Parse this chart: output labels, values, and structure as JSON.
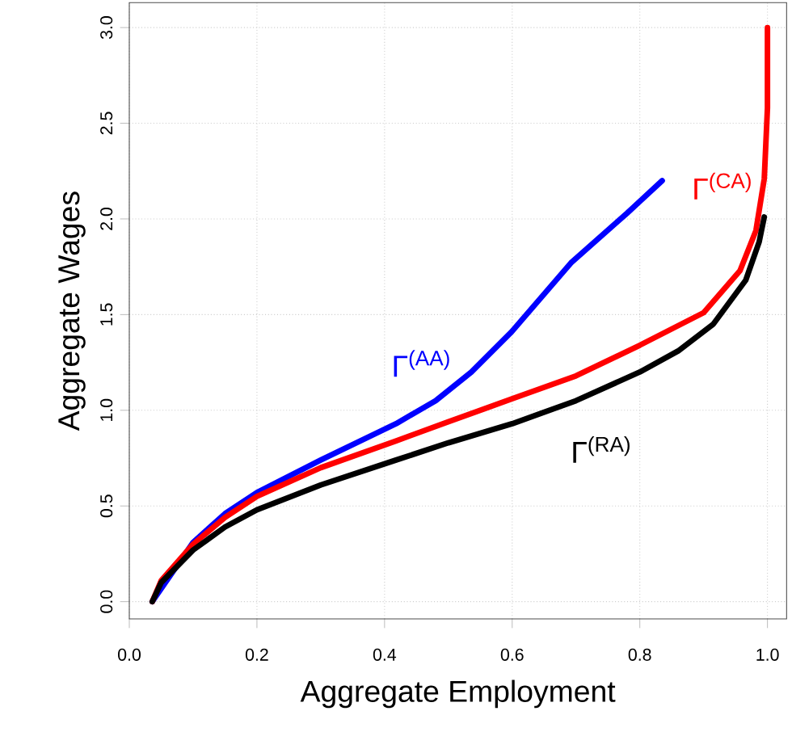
{
  "chart_data": {
    "type": "line",
    "xlabel": "Aggregate Employment",
    "ylabel": "Aggregate Wages",
    "xlim": [
      0,
      1.03
    ],
    "ylim": [
      -0.09,
      3.13
    ],
    "xticks": [
      {
        "value": 0,
        "label": "0.0"
      },
      0.2,
      0.4,
      0.6,
      0.8,
      {
        "value": 1,
        "label": "1.0"
      }
    ],
    "yticks": [
      {
        "value": 0,
        "label": "0.0"
      },
      0.5,
      {
        "value": 1,
        "label": "1.0"
      },
      1.5,
      {
        "value": 2,
        "label": "2.0"
      },
      2.5,
      {
        "value": 3,
        "label": "3.0"
      }
    ],
    "grid": true,
    "series": [
      {
        "name": "Γ$^{(AA)}$",
        "color": "#0000ff",
        "x": [
          0.036,
          0.05,
          0.1,
          0.15,
          0.2,
          0.3,
          0.418,
          0.48,
          0.536,
          0.599,
          0.692,
          0.78,
          0.835
        ],
        "values": [
          0,
          null,
          0.31,
          0.46,
          0.57,
          0.74,
          0.93,
          1.05,
          1.2,
          1.41,
          1.77,
          2.03,
          2.2
        ]
      },
      {
        "name": "Γ$^{(CA)}$",
        "color": "#ff0000",
        "x": [
          0.036,
          0.05,
          0.1,
          0.15,
          0.2,
          0.3,
          0.418,
          0.5,
          0.6,
          0.7,
          0.8,
          0.9,
          0.957,
          0.982,
          0.995,
          1.0,
          1.0
        ],
        "values": [
          0,
          0.11,
          0.3,
          0.44,
          0.55,
          0.7,
          0.84,
          0.94,
          1.06,
          1.18,
          1.34,
          1.51,
          1.73,
          1.94,
          2.21,
          2.58,
          3.0
        ]
      },
      {
        "name": "Γ$^{(RA)}$",
        "color": "#000000",
        "x": [
          0.036,
          0.05,
          0.1,
          0.15,
          0.2,
          0.3,
          0.418,
          0.5,
          0.6,
          0.7,
          0.8,
          0.86,
          0.915,
          0.966,
          0.987,
          0.995
        ],
        "values": [
          0,
          0.1,
          0.27,
          0.39,
          0.48,
          0.61,
          0.74,
          0.83,
          0.93,
          1.05,
          1.2,
          1.31,
          1.45,
          1.68,
          1.88,
          2.01
        ]
      }
    ]
  }
}
